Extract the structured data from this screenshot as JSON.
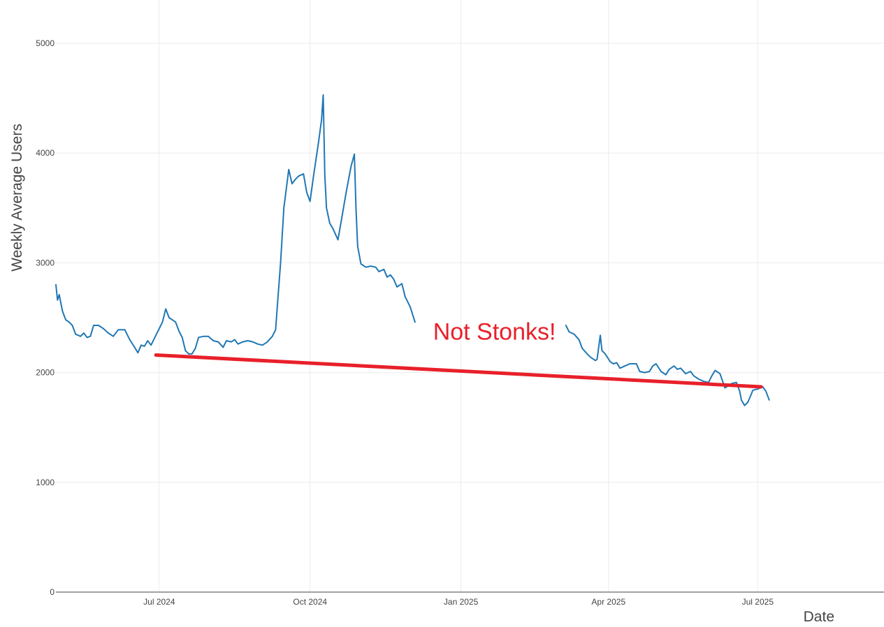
{
  "chart_data": {
    "type": "line",
    "title": "",
    "xlabel": "Date",
    "ylabel": "Weekly Average Users",
    "ylim": [
      0,
      5000
    ],
    "xlim": [
      "2024-04-29",
      "2025-09-16"
    ],
    "grid": true,
    "legend": "none",
    "y_ticks": [
      0,
      1000,
      2000,
      3000,
      4000,
      5000
    ],
    "x_ticks": [
      {
        "date": "2024-07-01",
        "label": "Jul 2024"
      },
      {
        "date": "2024-10-01",
        "label": "Oct 2024"
      },
      {
        "date": "2025-01-01",
        "label": "Jan 2025"
      },
      {
        "date": "2025-04-01",
        "label": "Apr 2025"
      },
      {
        "date": "2025-07-01",
        "label": "Jul 2025"
      }
    ],
    "series": [
      {
        "color": "#1f77b4",
        "segments": [
          [
            [
              "2024-04-29",
              2800
            ],
            [
              "2024-04-30",
              2660
            ],
            [
              "2024-05-01",
              2710
            ],
            [
              "2024-05-03",
              2560
            ],
            [
              "2024-05-05",
              2480
            ],
            [
              "2024-05-07",
              2460
            ],
            [
              "2024-05-09",
              2430
            ],
            [
              "2024-05-11",
              2350
            ],
            [
              "2024-05-14",
              2330
            ],
            [
              "2024-05-16",
              2360
            ],
            [
              "2024-05-18",
              2320
            ],
            [
              "2024-05-20",
              2330
            ],
            [
              "2024-05-22",
              2430
            ],
            [
              "2024-05-25",
              2430
            ],
            [
              "2024-05-28",
              2400
            ],
            [
              "2024-05-31",
              2360
            ],
            [
              "2024-06-03",
              2330
            ],
            [
              "2024-06-06",
              2390
            ],
            [
              "2024-06-10",
              2390
            ],
            [
              "2024-06-13",
              2300
            ],
            [
              "2024-06-16",
              2230
            ],
            [
              "2024-06-18",
              2180
            ],
            [
              "2024-06-20",
              2250
            ],
            [
              "2024-06-22",
              2240
            ],
            [
              "2024-06-24",
              2290
            ],
            [
              "2024-06-26",
              2250
            ],
            [
              "2024-06-29",
              2340
            ],
            [
              "2024-07-03",
              2460
            ],
            [
              "2024-07-05",
              2580
            ],
            [
              "2024-07-07",
              2500
            ],
            [
              "2024-07-09",
              2480
            ],
            [
              "2024-07-11",
              2460
            ],
            [
              "2024-07-13",
              2380
            ],
            [
              "2024-07-15",
              2320
            ],
            [
              "2024-07-17",
              2200
            ],
            [
              "2024-07-19",
              2170
            ],
            [
              "2024-07-21",
              2170
            ],
            [
              "2024-07-23",
              2220
            ],
            [
              "2024-07-25",
              2320
            ],
            [
              "2024-07-28",
              2330
            ],
            [
              "2024-07-31",
              2330
            ],
            [
              "2024-08-03",
              2290
            ],
            [
              "2024-08-06",
              2280
            ],
            [
              "2024-08-09",
              2230
            ],
            [
              "2024-08-11",
              2290
            ],
            [
              "2024-08-14",
              2280
            ],
            [
              "2024-08-16",
              2300
            ],
            [
              "2024-08-18",
              2260
            ],
            [
              "2024-08-21",
              2280
            ],
            [
              "2024-08-24",
              2290
            ],
            [
              "2024-08-27",
              2280
            ],
            [
              "2024-08-30",
              2260
            ],
            [
              "2024-09-02",
              2250
            ],
            [
              "2024-09-05",
              2280
            ],
            [
              "2024-09-08",
              2330
            ],
            [
              "2024-09-10",
              2390
            ],
            [
              "2024-09-11",
              2600
            ],
            [
              "2024-09-13",
              3000
            ],
            [
              "2024-09-15",
              3500
            ],
            [
              "2024-09-18",
              3850
            ],
            [
              "2024-09-20",
              3720
            ],
            [
              "2024-09-22",
              3760
            ],
            [
              "2024-09-24",
              3790
            ],
            [
              "2024-09-27",
              3810
            ],
            [
              "2024-09-29",
              3640
            ],
            [
              "2024-10-01",
              3560
            ],
            [
              "2024-10-03",
              3780
            ],
            [
              "2024-10-06",
              4080
            ],
            [
              "2024-10-08",
              4300
            ],
            [
              "2024-10-09",
              4530
            ],
            [
              "2024-10-10",
              3800
            ],
            [
              "2024-10-11",
              3500
            ],
            [
              "2024-10-13",
              3360
            ],
            [
              "2024-10-15",
              3310
            ],
            [
              "2024-10-18",
              3210
            ],
            [
              "2024-10-20",
              3380
            ],
            [
              "2024-10-23",
              3640
            ],
            [
              "2024-10-26",
              3880
            ],
            [
              "2024-10-28",
              3990
            ],
            [
              "2024-10-29",
              3500
            ],
            [
              "2024-10-30",
              3150
            ],
            [
              "2024-11-01",
              2990
            ],
            [
              "2024-11-04",
              2960
            ],
            [
              "2024-11-07",
              2970
            ],
            [
              "2024-11-10",
              2960
            ],
            [
              "2024-11-12",
              2920
            ],
            [
              "2024-11-15",
              2940
            ],
            [
              "2024-11-17",
              2870
            ],
            [
              "2024-11-19",
              2890
            ],
            [
              "2024-11-21",
              2850
            ],
            [
              "2024-11-23",
              2780
            ],
            [
              "2024-11-26",
              2810
            ],
            [
              "2024-11-28",
              2690
            ],
            [
              "2024-12-01",
              2600
            ],
            [
              "2024-12-04",
              2460
            ]
          ],
          [
            [
              "2025-03-06",
              2430
            ],
            [
              "2025-03-08",
              2370
            ],
            [
              "2025-03-11",
              2350
            ],
            [
              "2025-03-14",
              2300
            ],
            [
              "2025-03-16",
              2220
            ],
            [
              "2025-03-19",
              2170
            ],
            [
              "2025-03-21",
              2140
            ],
            [
              "2025-03-24",
              2110
            ],
            [
              "2025-03-25",
              2120
            ],
            [
              "2025-03-27",
              2340
            ],
            [
              "2025-03-28",
              2200
            ],
            [
              "2025-03-30",
              2170
            ],
            [
              "2025-04-02",
              2100
            ],
            [
              "2025-04-04",
              2080
            ],
            [
              "2025-04-06",
              2090
            ],
            [
              "2025-04-08",
              2040
            ],
            [
              "2025-04-11",
              2060
            ],
            [
              "2025-04-14",
              2080
            ],
            [
              "2025-04-18",
              2080
            ],
            [
              "2025-04-20",
              2010
            ],
            [
              "2025-04-23",
              2000
            ],
            [
              "2025-04-26",
              2010
            ],
            [
              "2025-04-28",
              2060
            ],
            [
              "2025-04-30",
              2080
            ],
            [
              "2025-05-03",
              2010
            ],
            [
              "2025-05-06",
              1980
            ],
            [
              "2025-05-08",
              2030
            ],
            [
              "2025-05-11",
              2060
            ],
            [
              "2025-05-13",
              2030
            ],
            [
              "2025-05-15",
              2040
            ],
            [
              "2025-05-18",
              1990
            ],
            [
              "2025-05-21",
              2010
            ],
            [
              "2025-05-23",
              1970
            ],
            [
              "2025-05-26",
              1940
            ],
            [
              "2025-05-29",
              1920
            ],
            [
              "2025-06-01",
              1910
            ],
            [
              "2025-06-03",
              1970
            ],
            [
              "2025-06-05",
              2020
            ],
            [
              "2025-06-08",
              1990
            ],
            [
              "2025-06-11",
              1860
            ],
            [
              "2025-06-13",
              1880
            ],
            [
              "2025-06-15",
              1900
            ],
            [
              "2025-06-18",
              1910
            ],
            [
              "2025-06-20",
              1830
            ],
            [
              "2025-06-21",
              1750
            ],
            [
              "2025-06-23",
              1700
            ],
            [
              "2025-06-25",
              1730
            ],
            [
              "2025-06-27",
              1800
            ],
            [
              "2025-06-28",
              1840
            ],
            [
              "2025-07-01",
              1850
            ],
            [
              "2025-07-04",
              1870
            ],
            [
              "2025-07-06",
              1830
            ],
            [
              "2025-07-08",
              1750
            ]
          ]
        ]
      }
    ],
    "annotations": [
      {
        "type": "trend-line",
        "color": "#e8202a",
        "from": [
          "2024-06-29",
          2160
        ],
        "to": [
          "2025-07-03",
          1870
        ]
      },
      {
        "type": "text",
        "text": "Not Stonks!",
        "color": "#e8202a",
        "at": [
          "2024-12-15",
          2300
        ]
      }
    ]
  }
}
